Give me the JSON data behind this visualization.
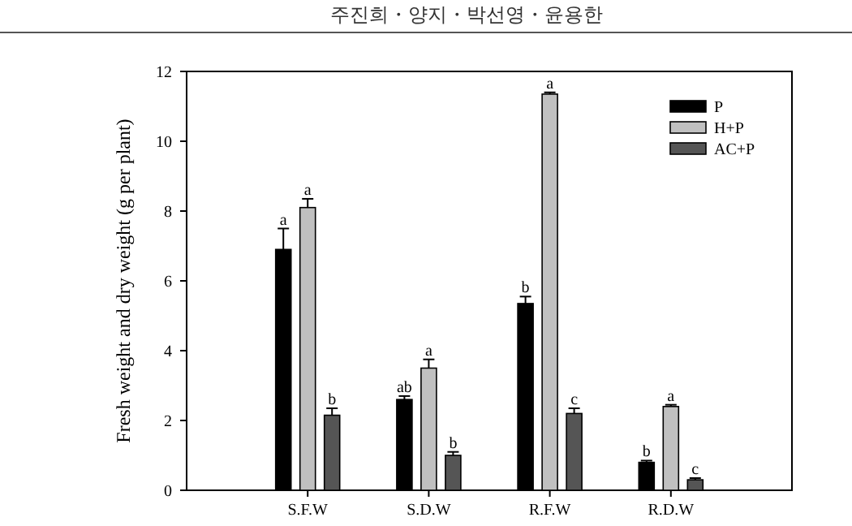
{
  "chart_data": {
    "type": "bar",
    "ylabel": "Fresh weight and dry weight (g per plant)",
    "categories": [
      "S.F.W",
      "S.D.W",
      "R.F.W",
      "R.D.W"
    ],
    "series": [
      {
        "name": "P",
        "color": "#000000",
        "values": [
          6.9,
          2.6,
          5.35,
          0.8
        ],
        "errors": [
          [
            6.9,
            7.5
          ],
          [
            2.6,
            2.7
          ],
          [
            5.35,
            5.55
          ],
          [
            0.8,
            0.85
          ]
        ]
      },
      {
        "name": "H+P",
        "color": "#c0c0c0",
        "values": [
          8.1,
          3.5,
          11.35,
          2.4
        ],
        "errors": [
          [
            8.1,
            8.35
          ],
          [
            3.5,
            3.75
          ],
          [
            11.35,
            11.4
          ],
          [
            2.4,
            2.45
          ]
        ]
      },
      {
        "name": "AC+P",
        "color": "#555555",
        "values": [
          2.15,
          1.0,
          2.2,
          0.3
        ],
        "errors": [
          [
            2.15,
            2.35
          ],
          [
            1.0,
            1.1
          ],
          [
            2.2,
            2.35
          ],
          [
            0.3,
            0.35
          ]
        ]
      }
    ],
    "ylim": [
      0,
      12
    ],
    "yticks": [
      0,
      2,
      4,
      6,
      8,
      10,
      12
    ],
    "grid": false,
    "legend": "top right",
    "annotations": [
      "주진희・양지・박선영・윤용한",
      {
        "text": "a",
        "x": "S.F.W",
        "y": 7.5
      },
      {
        "text": "a",
        "x": "S.F.W",
        "y": 8.35
      },
      {
        "text": "b",
        "x": "S.F.W",
        "y": 2.35
      },
      {
        "text": "ab",
        "x": "S.D.W",
        "y": 2.7
      },
      {
        "text": "a",
        "x": "S.D.W",
        "y": 3.75
      },
      {
        "text": "b",
        "x": "S.D.W",
        "y": 1.1
      },
      {
        "text": "b",
        "x": "R.F.W",
        "y": 5.55
      },
      {
        "text": "a",
        "x": "R.F.W",
        "y": 11.4
      },
      {
        "text": "c",
        "x": "R.F.W",
        "y": 2.35
      },
      {
        "text": "b",
        "x": "R.D.W",
        "y": 0.85
      },
      {
        "text": "a",
        "x": "R.D.W",
        "y": 2.45
      },
      {
        "text": "c",
        "x": "R.D.W",
        "y": 0.35
      }
    ]
  }
}
